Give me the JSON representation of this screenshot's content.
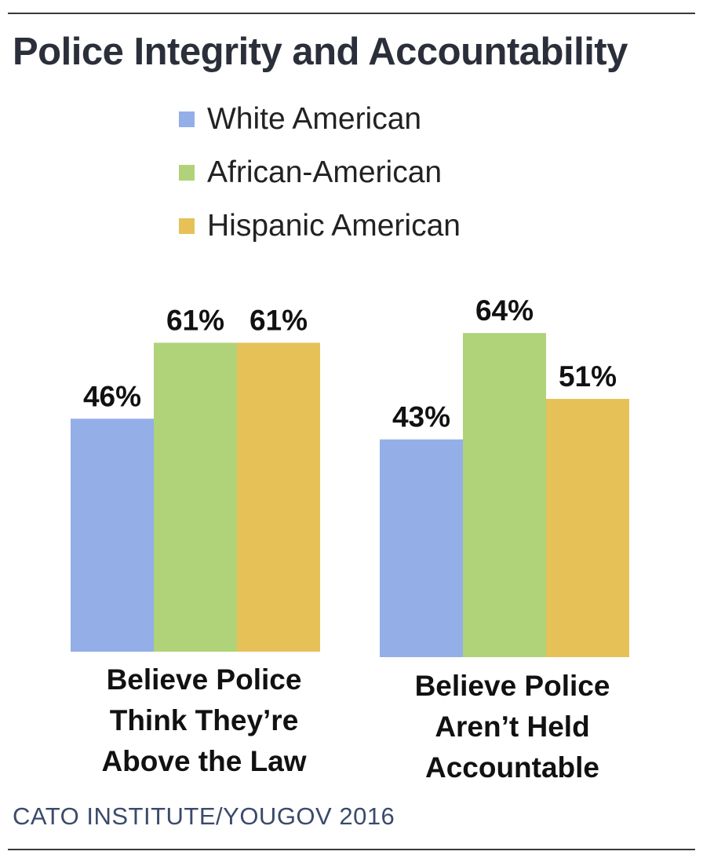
{
  "title": "Police Integrity and Accountability",
  "source": "CATO INSTITUTE/YOUGOV 2016",
  "colors": {
    "white_american": "#94aee8",
    "african_american": "#b0d279",
    "hispanic_american": "#e5c157"
  },
  "chart_data": {
    "type": "bar",
    "categories": [
      "Believe Police Think They’re Above the Law",
      "Believe Police Aren’t Held Accountable"
    ],
    "series": [
      {
        "name": "White American",
        "values": [
          46,
          43
        ],
        "labels": [
          "46%",
          "43%"
        ]
      },
      {
        "name": "African-American",
        "values": [
          61,
          64
        ],
        "labels": [
          "61%",
          "64%"
        ]
      },
      {
        "name": "Hispanic American",
        "values": [
          61,
          51
        ],
        "labels": [
          "61%",
          "51%"
        ]
      }
    ],
    "ylim": [
      0,
      100
    ],
    "grid": false,
    "legend_position": "top"
  }
}
